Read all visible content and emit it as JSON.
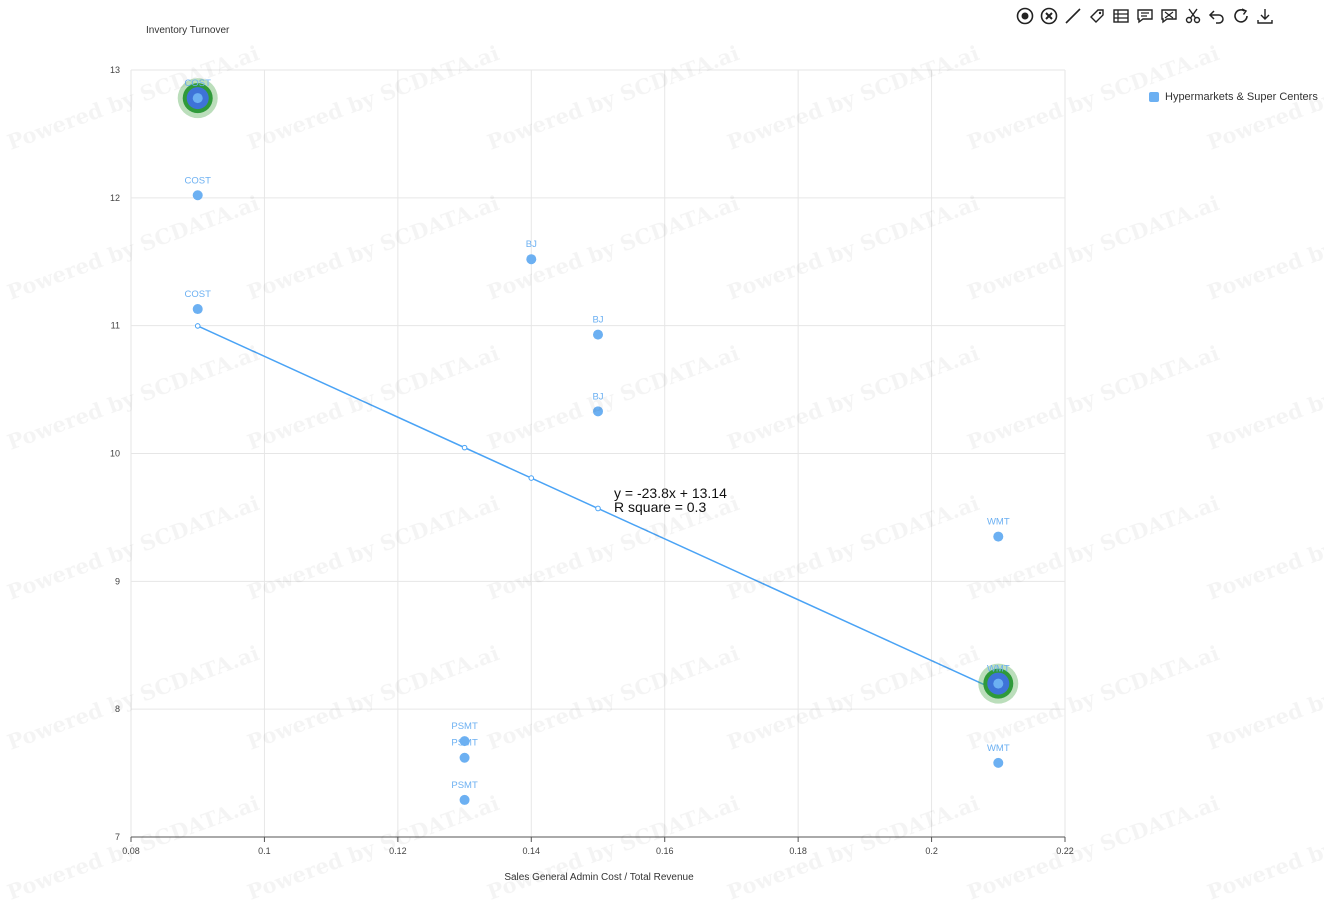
{
  "watermark": "Powered by SCDATA.ai",
  "toolbar": {
    "icons": [
      "target-icon",
      "close-circle-icon",
      "line-icon",
      "tag-icon",
      "table-icon",
      "comment-icon",
      "comment-off-icon",
      "scissors-icon",
      "undo-icon",
      "refresh-icon",
      "download-icon"
    ]
  },
  "legend": {
    "label": "Hypermarkets & Super Centers",
    "color": "#6cb0f2"
  },
  "chart_data": {
    "type": "scatter",
    "title": "",
    "xlabel": "Sales General Admin Cost / Total Revenue",
    "ylabel": "Inventory Turnover",
    "xlim": [
      0.08,
      0.22
    ],
    "ylim": [
      7,
      13
    ],
    "xticks": [
      "0.08",
      "0.1",
      "0.12",
      "0.14",
      "0.16",
      "0.18",
      "0.2",
      "0.22"
    ],
    "yticks": [
      "7",
      "8",
      "9",
      "10",
      "11",
      "12",
      "13"
    ],
    "grid": true,
    "legend_position": "top-right",
    "series": [
      {
        "name": "Hypermarkets & Super Centers",
        "color": "#6cb0f2",
        "points": [
          {
            "x": 0.09,
            "y": 12.78,
            "label": "COST",
            "highlight": true
          },
          {
            "x": 0.09,
            "y": 12.02,
            "label": "COST"
          },
          {
            "x": 0.09,
            "y": 11.13,
            "label": "COST"
          },
          {
            "x": 0.14,
            "y": 11.52,
            "label": "BJ"
          },
          {
            "x": 0.15,
            "y": 10.93,
            "label": "BJ"
          },
          {
            "x": 0.15,
            "y": 10.33,
            "label": "BJ"
          },
          {
            "x": 0.21,
            "y": 9.35,
            "label": "WMT"
          },
          {
            "x": 0.21,
            "y": 8.2,
            "label": "WMT",
            "highlight": true
          },
          {
            "x": 0.21,
            "y": 7.58,
            "label": "WMT"
          },
          {
            "x": 0.13,
            "y": 7.75,
            "label": "PSMT"
          },
          {
            "x": 0.13,
            "y": 7.62,
            "label": "PSMT"
          },
          {
            "x": 0.13,
            "y": 7.29,
            "label": "PSMT"
          }
        ]
      }
    ],
    "trendline": {
      "slope": -23.8,
      "intercept": 13.14,
      "equation": "y = -23.8x + 13.14",
      "r_squared": "R square = 0.3",
      "color": "#4aa3f5",
      "marker_x": [
        0.09,
        0.13,
        0.14,
        0.15,
        0.21
      ]
    }
  }
}
